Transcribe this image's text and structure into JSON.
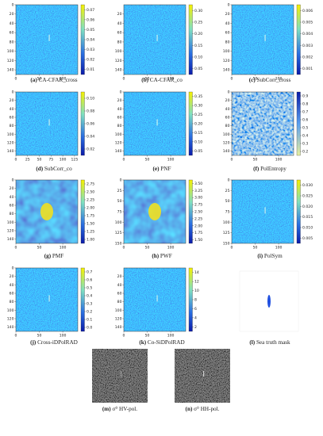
{
  "panels": [
    {
      "label": "(a)",
      "name": "CA-CFAR_cross",
      "yticks": [
        "0",
        "20",
        "40",
        "60",
        "80",
        "100",
        "120",
        "140"
      ],
      "xticks": [
        "0",
        "50",
        "100"
      ],
      "colorbar": [
        "0.07",
        "0.06",
        "0.05",
        "0.04",
        "0.03",
        "0.02",
        "0.01"
      ]
    },
    {
      "label": "(b)",
      "name": "CA-CFAR_co",
      "yticks": [
        "20",
        "40",
        "60",
        "80",
        "100",
        "120",
        "140"
      ],
      "xticks": [
        "0",
        "50",
        "100"
      ],
      "colorbar": [
        "0.30",
        "0.25",
        "0.20",
        "0.15",
        "0.10",
        "0.05"
      ]
    },
    {
      "label": "(c)",
      "name": "SubCorr_cross",
      "yticks": [
        "0",
        "20",
        "40",
        "60",
        "80",
        "100",
        "120",
        "140"
      ],
      "xticks": [
        "0",
        "50",
        "100"
      ],
      "colorbar": [
        "0.006",
        "0.005",
        "0.004",
        "0.003",
        "0.002",
        "0.001"
      ]
    },
    {
      "label": "(d)",
      "name": "SubCorr_co",
      "yticks": [
        "0",
        "20",
        "40",
        "60",
        "80",
        "100",
        "120",
        "140"
      ],
      "xticks": [
        "0",
        "25",
        "50",
        "75",
        "100",
        "125"
      ],
      "colorbar": [
        "0.10",
        "0.08",
        "0.06",
        "0.04",
        "0.02"
      ]
    },
    {
      "label": "(e)",
      "name": "PNF",
      "yticks": [
        "0",
        "20",
        "40",
        "60",
        "80",
        "100",
        "120",
        "140"
      ],
      "xticks": [
        "0",
        "50",
        "100"
      ],
      "colorbar": [
        "0.35",
        "0.30",
        "0.25",
        "0.20",
        "0.15",
        "0.10",
        "0.05"
      ]
    },
    {
      "label": "(f)",
      "name": "PolEntropy",
      "yticks": [
        "0",
        "20",
        "40",
        "60",
        "80",
        "100",
        "120",
        "140"
      ],
      "xticks": [
        "0",
        "50",
        "100"
      ],
      "colorbar": [
        "0.9",
        "0.8",
        "0.7",
        "0.6",
        "0.5",
        "0.4",
        "0.3",
        "0.2"
      ]
    },
    {
      "label": "(g)",
      "name": "PMF",
      "yticks": [
        "0",
        "20",
        "40",
        "60",
        "80",
        "100",
        "120",
        "140"
      ],
      "xticks": [
        "0",
        "50",
        "100"
      ],
      "colorbar": [
        "2.75",
        "2.50",
        "2.25",
        "2.00",
        "1.75",
        "1.50",
        "1.25",
        "1.00"
      ]
    },
    {
      "label": "(h)",
      "name": "PWF",
      "yticks": [
        "0",
        "25",
        "50",
        "75",
        "100",
        "125",
        "150"
      ],
      "xticks": [
        "0",
        "50",
        "100"
      ],
      "colorbar": [
        "3.50",
        "3.25",
        "3.00",
        "2.75",
        "2.50",
        "2.25",
        "2.00",
        "1.75",
        "1.50"
      ]
    },
    {
      "label": "(i)",
      "name": "PolSym",
      "yticks": [
        "0",
        "25",
        "50",
        "75",
        "100",
        "125",
        "150"
      ],
      "xticks": [
        "0",
        "50",
        "100"
      ],
      "colorbar": [
        "0.030",
        "0.025",
        "0.020",
        "0.015",
        "0.010",
        "0.005"
      ]
    },
    {
      "label": "(j)",
      "name": "Cross-iDPolRAD",
      "yticks": [
        "0",
        "20",
        "40",
        "60",
        "80",
        "100",
        "120",
        "140"
      ],
      "xticks": [
        "0",
        "50",
        "100"
      ],
      "colorbar": [
        "0.7",
        "0.6",
        "0.5",
        "0.4",
        "0.3",
        "0.2",
        "0.1",
        "0.0"
      ]
    },
    {
      "label": "(k)",
      "name": "Co-SiDPolRAD",
      "yticks": [
        "20",
        "40",
        "60",
        "80",
        "100",
        "120",
        "140"
      ],
      "xticks": [
        "0",
        "50",
        "100"
      ],
      "colorbar": [
        "14",
        "12",
        "10",
        "8",
        "6",
        "4",
        "2"
      ]
    },
    {
      "label": "(l)",
      "name": "Sea truth mask"
    },
    {
      "label": "(m)",
      "name": "σ⁰ HV-pol."
    },
    {
      "label": "(n)",
      "name": "σ⁰ HH-pol."
    }
  ]
}
